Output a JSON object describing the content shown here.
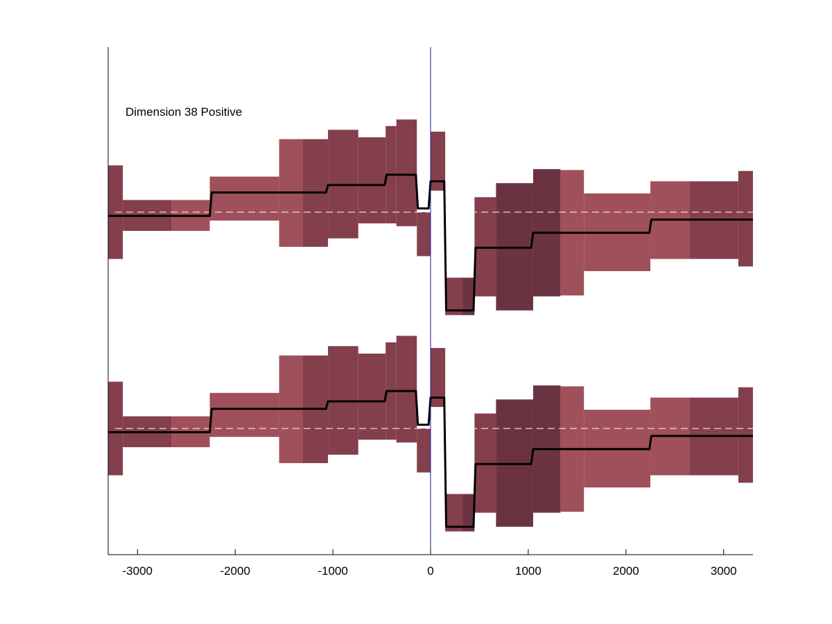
{
  "chart_data": {
    "type": "line",
    "title": "",
    "xlabel": "",
    "ylabel": "",
    "annotation": "Dimension 38 Positive",
    "xlim": [
      -3300,
      3300
    ],
    "xticks": [
      -3000,
      -2000,
      -1000,
      0,
      1000,
      2000,
      3000
    ],
    "xtick_labels": [
      "-3000",
      "-2000",
      "-1000",
      "0",
      "1000",
      "2000",
      "3000"
    ],
    "grid": false,
    "reference_line_x": 0,
    "colors": {
      "band_light": "#a0505a",
      "band_mid": "#843f4c",
      "band_dark": "#6b3342",
      "line": "#000000",
      "baseline_dash": "#ffffff",
      "reference_line": "#1a1aa0",
      "axis": "#000000"
    },
    "y_units": "relative (baseline = 0, arbitrary units)",
    "panels": [
      {
        "baseline": 0,
        "bins": [
          {
            "x0": -3300,
            "x1": -3150,
            "lo": -2.5,
            "hi": 2.5,
            "shade": "mid"
          },
          {
            "x0": -3150,
            "x1": -2650,
            "lo": -1.0,
            "hi": 0.65,
            "shade": "mid"
          },
          {
            "x0": -2650,
            "x1": -2260,
            "lo": -1.0,
            "hi": 0.65,
            "shade": "light"
          },
          {
            "x0": -2260,
            "x1": -1550,
            "lo": -0.45,
            "hi": 1.9,
            "shade": "light"
          },
          {
            "x0": -1550,
            "x1": -1310,
            "lo": -1.85,
            "hi": 3.9,
            "shade": "light"
          },
          {
            "x0": -1310,
            "x1": -1050,
            "lo": -1.85,
            "hi": 3.9,
            "shade": "mid"
          },
          {
            "x0": -1050,
            "x1": -740,
            "lo": -1.4,
            "hi": 4.4,
            "shade": "mid"
          },
          {
            "x0": -740,
            "x1": -460,
            "lo": -0.6,
            "hi": 4.0,
            "shade": "mid"
          },
          {
            "x0": -460,
            "x1": -350,
            "lo": -0.6,
            "hi": 4.6,
            "shade": "mid"
          },
          {
            "x0": -350,
            "x1": -140,
            "lo": -0.75,
            "hi": 4.95,
            "shade": "mid"
          },
          {
            "x0": -140,
            "x1": 0,
            "lo": -2.35,
            "hi": 0.0,
            "shade": "mid"
          },
          {
            "x0": 0,
            "x1": 150,
            "lo": 1.15,
            "hi": 4.3,
            "shade": "mid"
          },
          {
            "x0": 150,
            "x1": 330,
            "lo": -5.5,
            "hi": -3.5,
            "shade": "mid"
          },
          {
            "x0": 330,
            "x1": 450,
            "lo": -5.5,
            "hi": -3.5,
            "shade": "dark"
          },
          {
            "x0": 450,
            "x1": 670,
            "lo": -4.5,
            "hi": 0.8,
            "shade": "mid"
          },
          {
            "x0": 670,
            "x1": 1050,
            "lo": -5.25,
            "hi": 1.55,
            "shade": "dark"
          },
          {
            "x0": 1050,
            "x1": 1330,
            "lo": -4.5,
            "hi": 2.3,
            "shade": "dark"
          },
          {
            "x0": 1330,
            "x1": 1570,
            "lo": -4.45,
            "hi": 2.25,
            "shade": "light"
          },
          {
            "x0": 1570,
            "x1": 2250,
            "lo": -3.15,
            "hi": 1.0,
            "shade": "light"
          },
          {
            "x0": 2250,
            "x1": 2650,
            "lo": -2.5,
            "hi": 1.65,
            "shade": "light"
          },
          {
            "x0": 2650,
            "x1": 3150,
            "lo": -2.5,
            "hi": 1.65,
            "shade": "mid"
          },
          {
            "x0": 3150,
            "x1": 3300,
            "lo": -2.9,
            "hi": 2.2,
            "shade": "mid"
          }
        ],
        "line": [
          {
            "x": -3300,
            "y": -0.2
          },
          {
            "x": -2260,
            "y": -0.2
          },
          {
            "x": -2240,
            "y": 1.05
          },
          {
            "x": -1070,
            "y": 1.05
          },
          {
            "x": -1050,
            "y": 1.45
          },
          {
            "x": -470,
            "y": 1.45
          },
          {
            "x": -450,
            "y": 2.0
          },
          {
            "x": -150,
            "y": 2.0
          },
          {
            "x": -130,
            "y": 0.2
          },
          {
            "x": -20,
            "y": 0.2
          },
          {
            "x": 0,
            "y": 1.65
          },
          {
            "x": 140,
            "y": 1.65
          },
          {
            "x": 160,
            "y": -5.25
          },
          {
            "x": 440,
            "y": -5.25
          },
          {
            "x": 460,
            "y": -1.9
          },
          {
            "x": 1030,
            "y": -1.9
          },
          {
            "x": 1050,
            "y": -1.1
          },
          {
            "x": 2240,
            "y": -1.1
          },
          {
            "x": 2260,
            "y": -0.4
          },
          {
            "x": 3300,
            "y": -0.4
          }
        ]
      },
      {
        "baseline": 0,
        "bins": [
          {
            "x0": -3300,
            "x1": -3150,
            "lo": -2.5,
            "hi": 2.5,
            "shade": "mid"
          },
          {
            "x0": -3150,
            "x1": -2650,
            "lo": -1.0,
            "hi": 0.65,
            "shade": "mid"
          },
          {
            "x0": -2650,
            "x1": -2260,
            "lo": -1.0,
            "hi": 0.65,
            "shade": "light"
          },
          {
            "x0": -2260,
            "x1": -1550,
            "lo": -0.45,
            "hi": 1.9,
            "shade": "light"
          },
          {
            "x0": -1550,
            "x1": -1310,
            "lo": -1.85,
            "hi": 3.9,
            "shade": "light"
          },
          {
            "x0": -1310,
            "x1": -1050,
            "lo": -1.85,
            "hi": 3.9,
            "shade": "mid"
          },
          {
            "x0": -1050,
            "x1": -740,
            "lo": -1.4,
            "hi": 4.4,
            "shade": "mid"
          },
          {
            "x0": -740,
            "x1": -460,
            "lo": -0.6,
            "hi": 4.0,
            "shade": "mid"
          },
          {
            "x0": -460,
            "x1": -350,
            "lo": -0.6,
            "hi": 4.6,
            "shade": "mid"
          },
          {
            "x0": -350,
            "x1": -140,
            "lo": -0.75,
            "hi": 4.95,
            "shade": "mid"
          },
          {
            "x0": -140,
            "x1": 0,
            "lo": -2.35,
            "hi": 0.0,
            "shade": "mid"
          },
          {
            "x0": 0,
            "x1": 150,
            "lo": 1.15,
            "hi": 4.3,
            "shade": "mid"
          },
          {
            "x0": 150,
            "x1": 330,
            "lo": -5.5,
            "hi": -3.5,
            "shade": "mid"
          },
          {
            "x0": 330,
            "x1": 450,
            "lo": -5.5,
            "hi": -3.5,
            "shade": "dark"
          },
          {
            "x0": 450,
            "x1": 670,
            "lo": -4.5,
            "hi": 0.8,
            "shade": "mid"
          },
          {
            "x0": 670,
            "x1": 1050,
            "lo": -5.25,
            "hi": 1.55,
            "shade": "dark"
          },
          {
            "x0": 1050,
            "x1": 1330,
            "lo": -4.5,
            "hi": 2.3,
            "shade": "dark"
          },
          {
            "x0": 1330,
            "x1": 1570,
            "lo": -4.45,
            "hi": 2.25,
            "shade": "light"
          },
          {
            "x0": 1570,
            "x1": 2250,
            "lo": -3.15,
            "hi": 1.0,
            "shade": "light"
          },
          {
            "x0": 2250,
            "x1": 2650,
            "lo": -2.5,
            "hi": 1.65,
            "shade": "light"
          },
          {
            "x0": 2650,
            "x1": 3150,
            "lo": -2.5,
            "hi": 1.65,
            "shade": "mid"
          },
          {
            "x0": 3150,
            "x1": 3300,
            "lo": -2.9,
            "hi": 2.2,
            "shade": "mid"
          }
        ],
        "line": [
          {
            "x": -3300,
            "y": -0.2
          },
          {
            "x": -2260,
            "y": -0.2
          },
          {
            "x": -2240,
            "y": 1.05
          },
          {
            "x": -1070,
            "y": 1.05
          },
          {
            "x": -1050,
            "y": 1.45
          },
          {
            "x": -470,
            "y": 1.45
          },
          {
            "x": -450,
            "y": 2.0
          },
          {
            "x": -150,
            "y": 2.0
          },
          {
            "x": -130,
            "y": 0.2
          },
          {
            "x": -20,
            "y": 0.2
          },
          {
            "x": 0,
            "y": 1.65
          },
          {
            "x": 140,
            "y": 1.65
          },
          {
            "x": 160,
            "y": -5.25
          },
          {
            "x": 440,
            "y": -5.25
          },
          {
            "x": 460,
            "y": -1.9
          },
          {
            "x": 1030,
            "y": -1.9
          },
          {
            "x": 1050,
            "y": -1.1
          },
          {
            "x": 2240,
            "y": -1.1
          },
          {
            "x": 2260,
            "y": -0.4
          },
          {
            "x": 3300,
            "y": -0.4
          }
        ]
      }
    ]
  }
}
